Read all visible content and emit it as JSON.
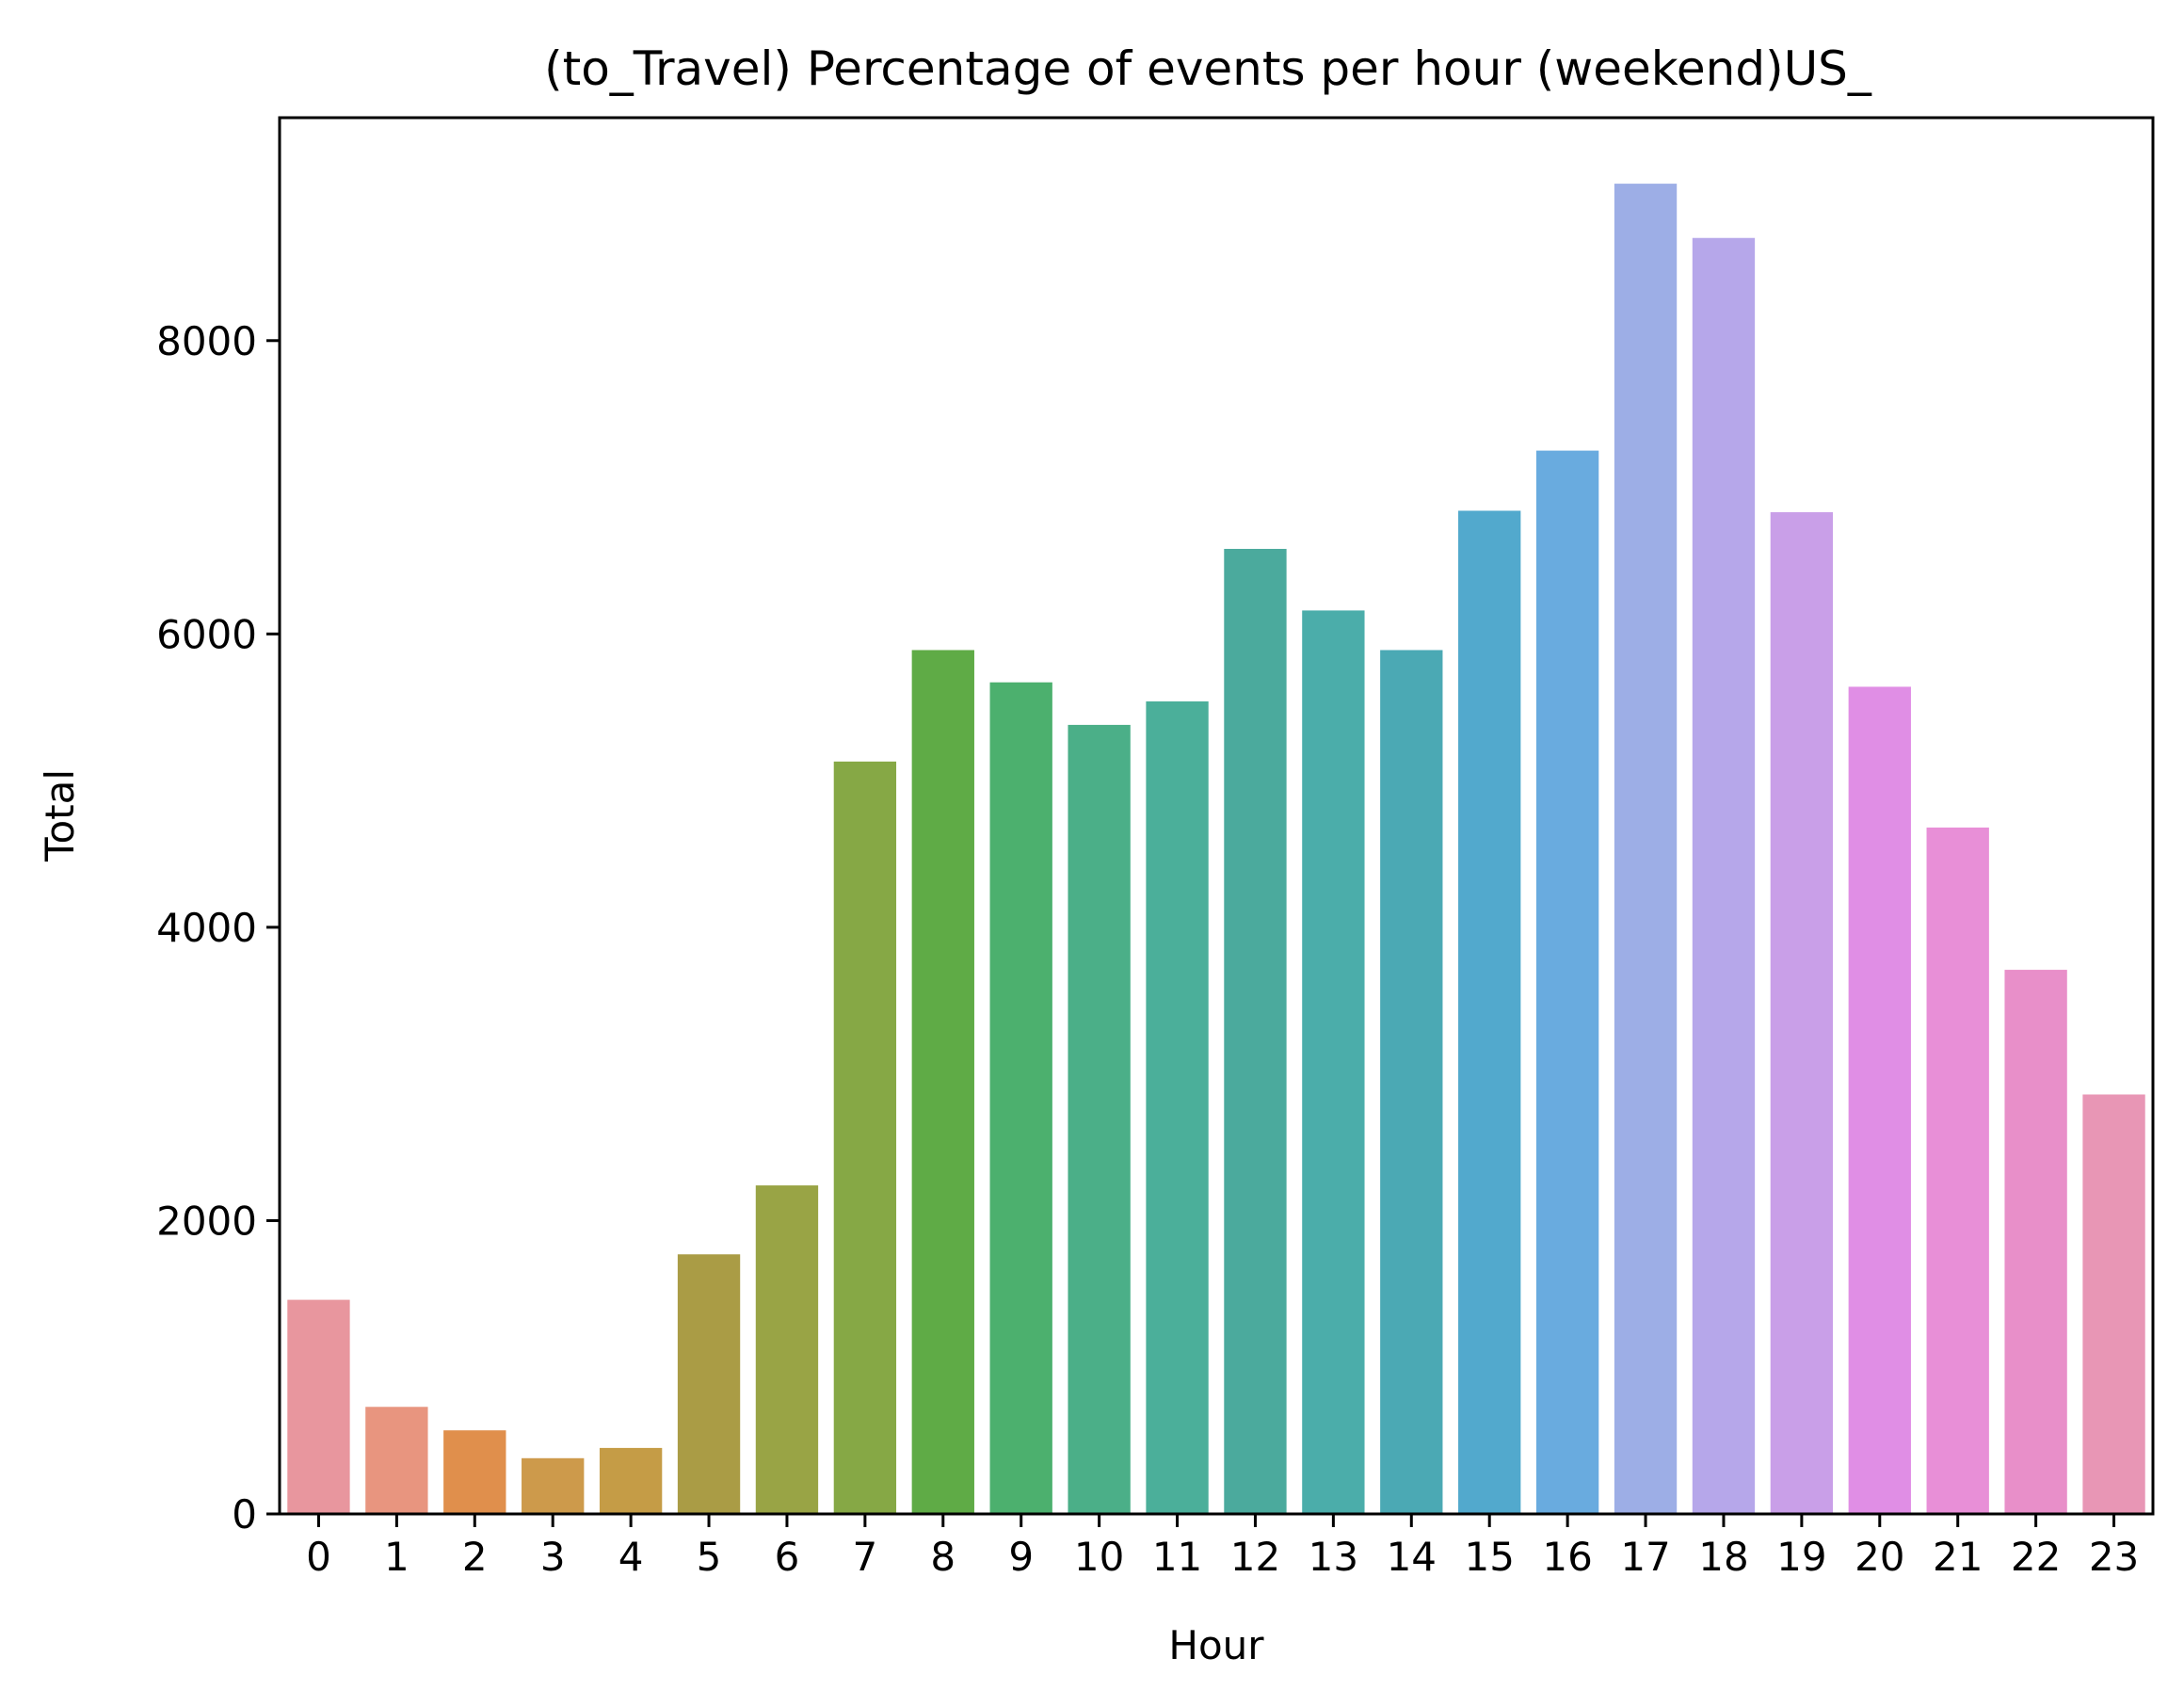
{
  "chart_data": {
    "type": "bar",
    "title": "(to_Travel) Percentage of events per hour (weekend)US_",
    "xlabel": "Hour",
    "ylabel": "Total",
    "categories": [
      "0",
      "1",
      "2",
      "3",
      "4",
      "5",
      "6",
      "7",
      "8",
      "9",
      "10",
      "11",
      "12",
      "13",
      "14",
      "15",
      "16",
      "17",
      "18",
      "19",
      "20",
      "21",
      "22",
      "23"
    ],
    "values": [
      1460,
      730,
      570,
      380,
      450,
      1770,
      2240,
      5130,
      5890,
      5670,
      5380,
      5540,
      6580,
      6160,
      5890,
      6840,
      7250,
      9070,
      8700,
      6830,
      5640,
      4680,
      3710,
      2860
    ],
    "colors": [
      "#e8969e",
      "#e8957f",
      "#e08f4c",
      "#cd9a4b",
      "#c59c46",
      "#aa9c45",
      "#99a445",
      "#86a845",
      "#5fab46",
      "#4cb06e",
      "#4baf88",
      "#4baf9a",
      "#4baa9d",
      "#4badaa",
      "#4ba9b4",
      "#52a9cd",
      "#69abdf",
      "#9daee6",
      "#b6a7ea",
      "#c99fe8",
      "#e08ee5",
      "#e88fd7",
      "#e88fc9",
      "#e896b5"
    ],
    "yticks": [
      0,
      2000,
      4000,
      6000,
      8000
    ],
    "ylim": [
      0,
      9520
    ],
    "grid": false,
    "legend": "none"
  }
}
